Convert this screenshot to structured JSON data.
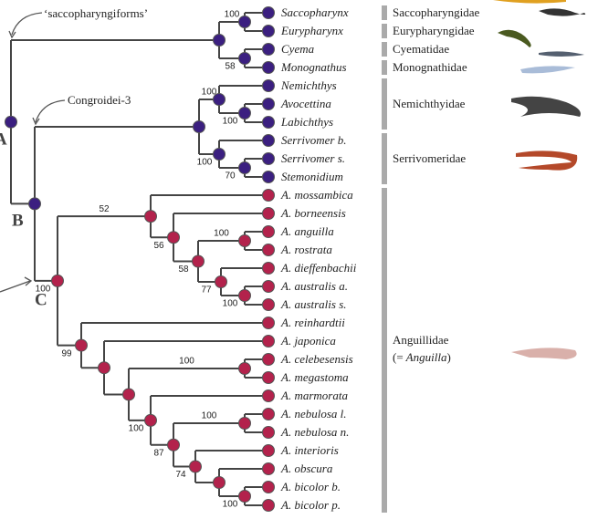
{
  "annotations": {
    "saccopharyngiforms": "‘saccopharyngiforms’",
    "congroidei": "Congroidei-3",
    "label_a": "A",
    "label_b": "B",
    "label_c": "C"
  },
  "tree": {
    "children": [
      {
        "children": [
          {
            "support": 100,
            "children": [
              {
                "label": "Saccopharynx"
              },
              {
                "label": "Eurypharynx"
              }
            ]
          },
          {
            "support": 58,
            "children": [
              {
                "label": "Cyema"
              },
              {
                "label": "Monognathus"
              }
            ]
          }
        ]
      },
      {
        "children": [
          {
            "children": [
              {
                "support": 100,
                "children": [
                  {
                    "label": "Nemichthys"
                  },
                  {
                    "support": 100,
                    "children": [
                      {
                        "label": "Avocettina"
                      },
                      {
                        "label": "Labichthys"
                      }
                    ]
                  }
                ]
              },
              {
                "support": 100,
                "children": [
                  {
                    "label": "Serrivomer b."
                  },
                  {
                    "support": 70,
                    "children": [
                      {
                        "label": "Serrivomer s."
                      },
                      {
                        "label": "Stemonidium"
                      }
                    ]
                  }
                ]
              }
            ]
          },
          {
            "support": 100,
            "children": [
              {
                "support": 52,
                "children": [
                  {
                    "label": "A. mossambica"
                  },
                  {
                    "support": 56,
                    "children": [
                      {
                        "label": "A. borneensis"
                      },
                      {
                        "support": 58,
                        "children": [
                          {
                            "support": 100,
                            "children": [
                              {
                                "label": "A. anguilla"
                              },
                              {
                                "label": "A. rostrata"
                              }
                            ]
                          },
                          {
                            "support": 77,
                            "children": [
                              {
                                "label": "A. dieffenbachii"
                              },
                              {
                                "support": 100,
                                "children": [
                                  {
                                    "label": "A. australis a."
                                  },
                                  {
                                    "label": "A. australis s."
                                  }
                                ]
                              }
                            ]
                          }
                        ]
                      }
                    ]
                  }
                ]
              },
              {
                "support": 99,
                "children": [
                  {
                    "label": "A. reinhardtii"
                  },
                  {
                    "children": [
                      {
                        "label": "A. japonica"
                      },
                      {
                        "children": [
                          {
                            "support": 100,
                            "children": [
                              {
                                "label": "A. celebesensis"
                              },
                              {
                                "label": "A. megastoma"
                              }
                            ]
                          },
                          {
                            "support": 100,
                            "children": [
                              {
                                "label": "A. marmorata"
                              },
                              {
                                "support": 87,
                                "children": [
                                  {
                                    "support": 100,
                                    "children": [
                                      {
                                        "label": "A. nebulosa l."
                                      },
                                      {
                                        "label": "A. nebulosa n."
                                      }
                                    ]
                                  },
                                  {
                                    "support": 74,
                                    "children": [
                                      {
                                        "label": "A. interioris"
                                      },
                                      {
                                        "children": [
                                          {
                                            "label": "A. obscura"
                                          },
                                          {
                                            "support": 100,
                                            "children": [
                                              {
                                                "label": "A. bicolor b."
                                              },
                                              {
                                                "label": "A. bicolor p."
                                              }
                                            ]
                                          }
                                        ]
                                      }
                                    ]
                                  }
                                ]
                              }
                            ]
                          }
                        ]
                      }
                    ]
                  }
                ]
              }
            ]
          }
        ]
      }
    ]
  },
  "families": [
    {
      "name": "Saccopharyngidae"
    },
    {
      "name": "Eurypharyngidae"
    },
    {
      "name": "Cyematidae"
    },
    {
      "name": "Monognathidae"
    },
    {
      "name": "Nemichthyidae"
    },
    {
      "name": "Serrivomeridae"
    },
    {
      "name": "Anguillidae",
      "line2_prefix": "(=",
      "line2_italic": "Anguilla",
      "line2_suffix": ")"
    }
  ]
}
